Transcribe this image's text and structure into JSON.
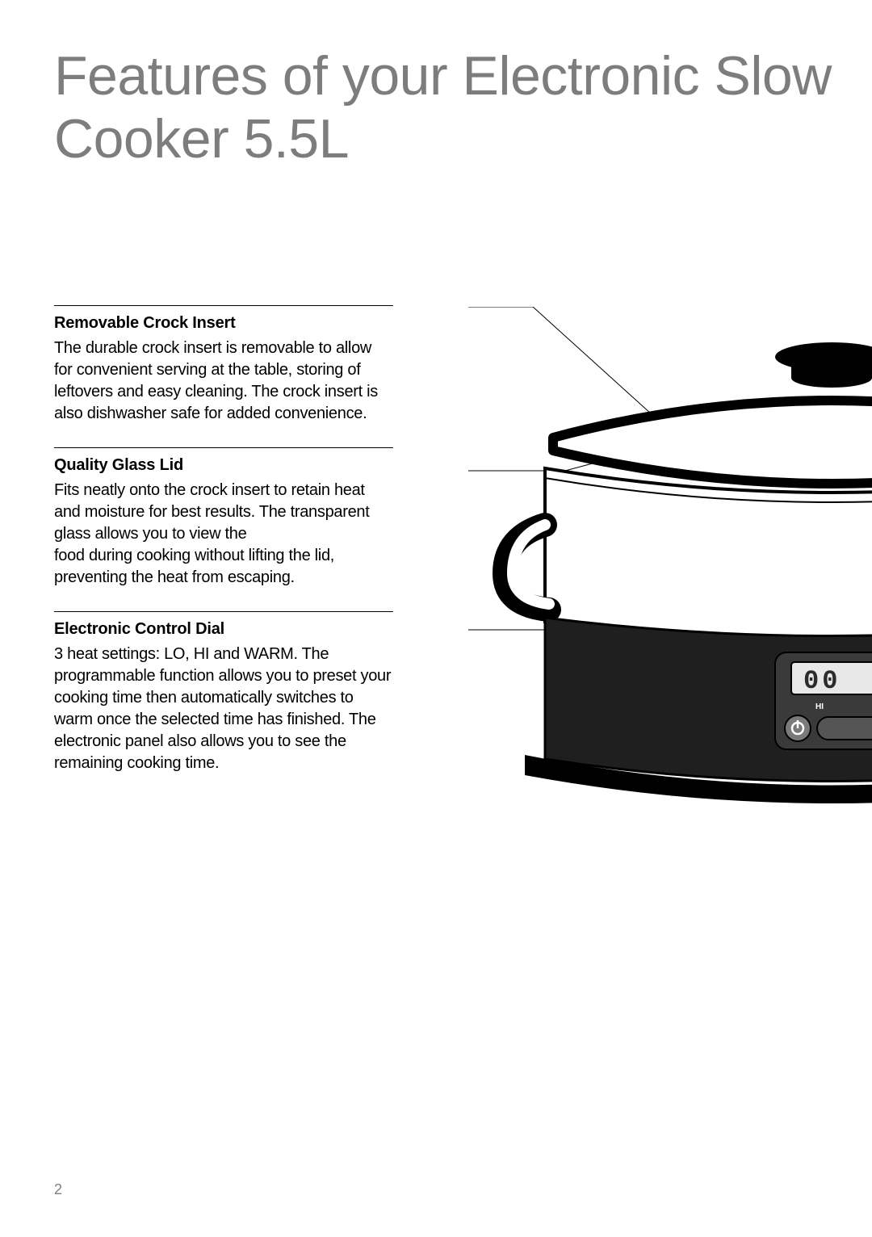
{
  "title_color": "#7b7d7e",
  "accent_color": "#d1232a",
  "page_title": "Features of your Electronic Slow Cooker 5.5L",
  "page_number": "2",
  "features": [
    {
      "title": "Removable Crock Insert",
      "body": "The durable crock insert is removable to allow for convenient serving at the table, storing of leftovers and easy cleaning. The crock insert is also dishwasher safe for added convenience."
    },
    {
      "title": "Quality Glass Lid",
      "body": "Fits neatly onto the crock insert to retain heat and moisture for best results. The transparent glass allows you to view the\nfood during cooking without lifting the lid, preventing the heat from escaping."
    },
    {
      "title": "Electronic Control Dial",
      "body": "3 heat settings: LO, HI and WARM. The programmable function allows you to preset your cooking time then automatically switches to warm once the selected time has finished. The electronic panel also allows you to see the remaining cooking time."
    }
  ],
  "illustration": {
    "display_text": "00",
    "label_hi": "HI",
    "colors": {
      "body_outline": "#000000",
      "body_fill": "#ffffff",
      "base_fill": "#1f1f1f",
      "panel_fill": "#3a3a3a",
      "lcd_fill": "#e8e8e8",
      "knob_fill": "#000000",
      "power_btn_fill": "#7a7a7a"
    },
    "callouts": [
      {
        "from": [
          -150,
          0
        ],
        "elbow": [
          80,
          0
        ],
        "to": [
          290,
          190
        ],
        "label_key": "features.0.title"
      },
      {
        "from": [
          -150,
          203
        ],
        "elbow": [
          120,
          203
        ],
        "to": [
          300,
          155
        ],
        "label_key": "features.1.title"
      },
      {
        "from": [
          -150,
          400
        ],
        "elbow": [
          160,
          400
        ],
        "to": [
          480,
          400
        ],
        "label_key": "features.2.title"
      }
    ]
  }
}
